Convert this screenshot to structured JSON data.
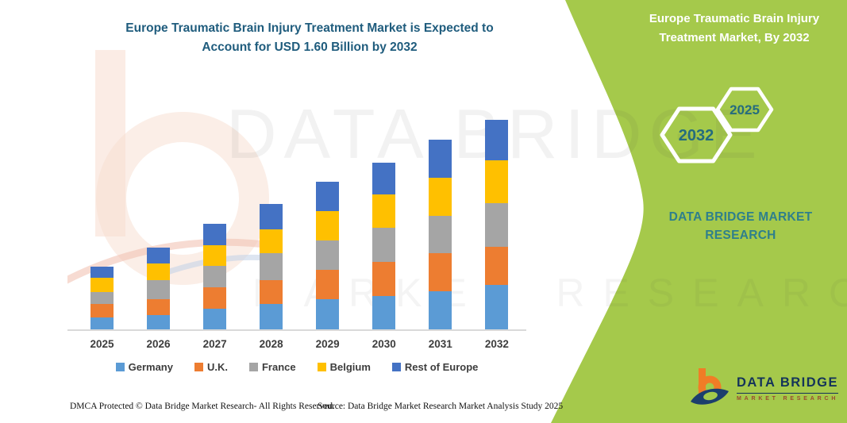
{
  "chart": {
    "title_line1": "Europe Traumatic Brain Injury Treatment Market is Expected to",
    "title_line2": "Account for USD 1.60 Billion by 2032",
    "title_color": "#1f5c7d"
  },
  "chart_data": {
    "type": "bar",
    "stacked": true,
    "title": "Europe Traumatic Brain Injury Treatment Market is Expected to Account for USD 1.60 Billion by 2032",
    "unit": "USD Billion",
    "categories": [
      "2025",
      "2026",
      "2027",
      "2028",
      "2029",
      "2030",
      "2031",
      "2032"
    ],
    "series": [
      {
        "name": "Germany",
        "color": "#5b9bd5",
        "values": [
          0.095,
          0.112,
          0.161,
          0.197,
          0.237,
          0.261,
          0.294,
          0.342
        ]
      },
      {
        "name": "U.K.",
        "color": "#ed7d31",
        "values": [
          0.105,
          0.125,
          0.165,
          0.181,
          0.222,
          0.258,
          0.29,
          0.292
        ]
      },
      {
        "name": "France",
        "color": "#a5a5a5",
        "values": [
          0.091,
          0.141,
          0.161,
          0.205,
          0.225,
          0.261,
          0.282,
          0.332
        ]
      },
      {
        "name": "Belgium",
        "color": "#ffc000",
        "values": [
          0.106,
          0.131,
          0.157,
          0.185,
          0.222,
          0.252,
          0.29,
          0.322
        ]
      },
      {
        "name": "Rest of Europe",
        "color": "#4472c4",
        "values": [
          0.087,
          0.121,
          0.161,
          0.191,
          0.222,
          0.243,
          0.292,
          0.312
        ]
      }
    ],
    "estimated_totals": [
      0.48,
      0.63,
      0.81,
      0.96,
      1.13,
      1.27,
      1.44,
      1.6
    ],
    "ylim": [
      0,
      1.7
    ],
    "grid": false,
    "y_axis_visible": false,
    "x_axis_line_color": "#d9d9d9",
    "legend_position": "bottom"
  },
  "side_panel": {
    "title": "Europe Traumatic Brain Injury Treatment Market, By 2032",
    "hexagon_large_label": "2032",
    "hexagon_small_label": "2025",
    "brand_line1": "DATA BRIDGE MARKET",
    "brand_line2": "RESEARCH",
    "green": "#a5c94b",
    "teal": "#2e7f8c"
  },
  "logo": {
    "title": "DATA BRIDGE",
    "subtitle": "MARKET RESEARCH"
  },
  "watermark": {
    "line1": "DATA BRIDGE",
    "line2": "MARKET RESEARCH"
  },
  "footer": {
    "left": "DMCA Protected © Data Bridge Market Research-  All Rights Reserved.",
    "right": "Source: Data Bridge Market Research  Market Analysis Study 2025"
  }
}
